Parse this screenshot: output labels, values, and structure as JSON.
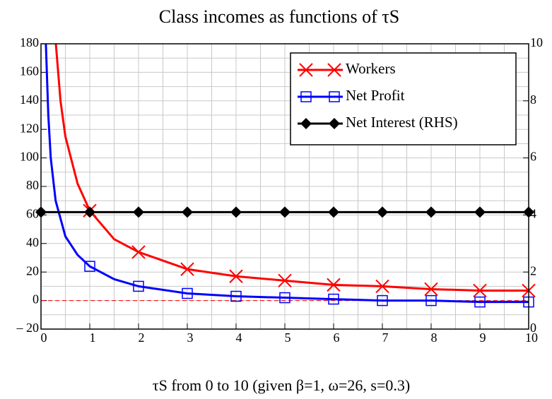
{
  "chart_data": {
    "type": "line",
    "title": "Class incomes as functions of τS",
    "x_label": "τS from 0 to 10 (given β=1,   ω=26,   s=0.3)",
    "xlim": [
      0,
      10
    ],
    "xticks": [
      0,
      1,
      2,
      3,
      4,
      5,
      6,
      7,
      8,
      9,
      10
    ],
    "ylim": [
      -20,
      180
    ],
    "yticks": [
      {
        "value": -20,
        "label": "– 20"
      },
      0,
      20,
      40,
      60,
      80,
      100,
      120,
      140,
      160,
      180
    ],
    "y2lim": [
      0,
      10
    ],
    "y2ticks": [
      0,
      2,
      4,
      6,
      8,
      10
    ],
    "grid": true,
    "minor_grid": true,
    "zero_line": true,
    "legend": "upper right",
    "series": [
      {
        "name": "Workers",
        "color": "#ff0000",
        "marker": "x",
        "x": [
          0.3,
          0.4,
          0.5,
          0.75,
          1,
          1.5,
          2,
          3,
          4,
          5,
          6,
          7,
          8,
          9,
          10
        ],
        "values": [
          182,
          140,
          115,
          82,
          63,
          43,
          34,
          22,
          17,
          14,
          11,
          10,
          8,
          7,
          7
        ]
      },
      {
        "name": "Net Profit",
        "color": "#0000ff",
        "marker": "square",
        "x": [
          0.1,
          0.15,
          0.2,
          0.3,
          0.5,
          0.75,
          1,
          1.5,
          2,
          3,
          4,
          5,
          6,
          7,
          8,
          9,
          10
        ],
        "values": [
          180,
          130,
          100,
          70,
          45,
          32,
          24,
          15,
          10,
          5,
          3,
          2,
          1,
          0,
          0,
          -1,
          -1
        ]
      },
      {
        "name": "Net Interest (RHS)",
        "color": "#000000",
        "marker": "diamond",
        "axis": "y2",
        "x": [
          0,
          1,
          2,
          3,
          4,
          5,
          6,
          7,
          8,
          9,
          10
        ],
        "values": [
          4.1,
          4.1,
          4.1,
          4.1,
          4.1,
          4.1,
          4.1,
          4.1,
          4.1,
          4.1,
          4.1
        ]
      }
    ]
  }
}
